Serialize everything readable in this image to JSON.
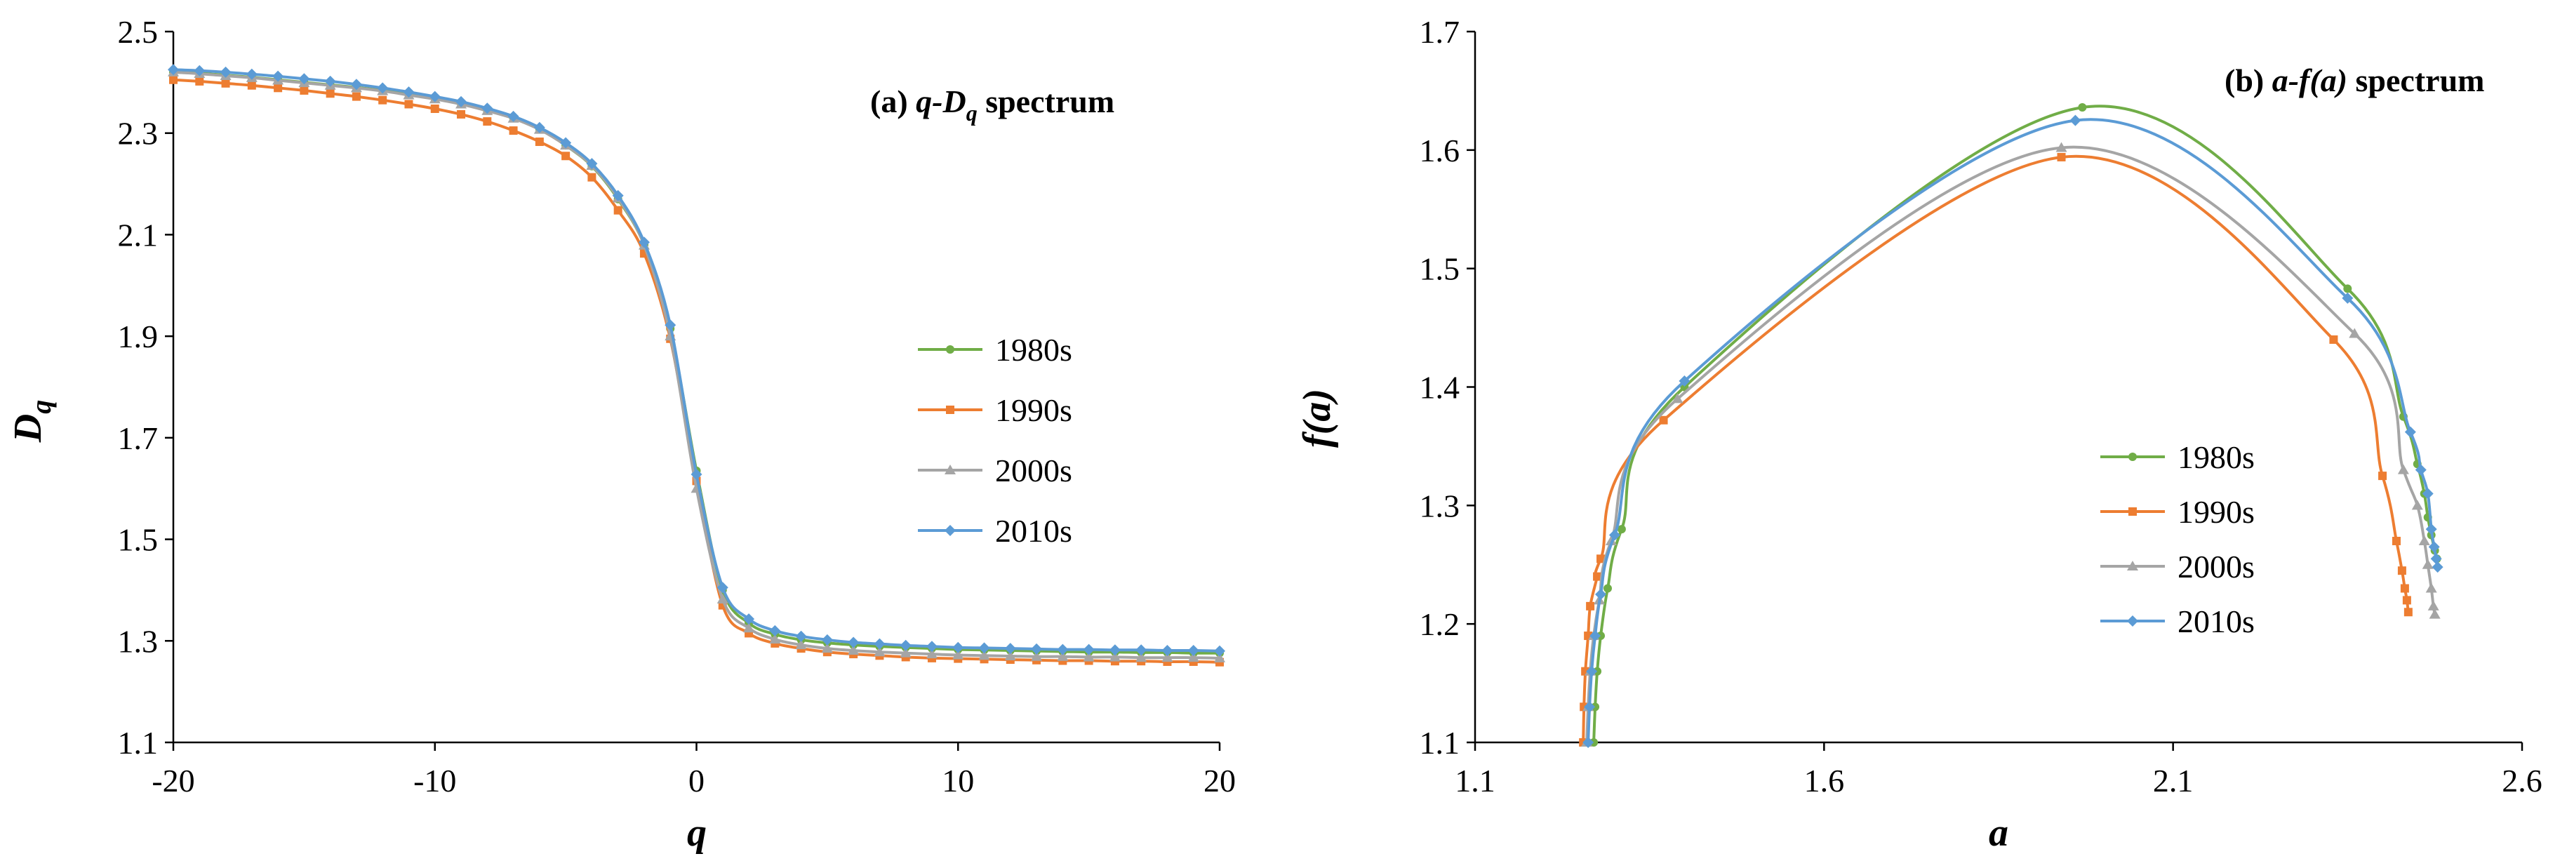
{
  "chart_data": [
    {
      "type": "line",
      "title_prefix": "(a) ",
      "title_var": "q-D",
      "title_sub": "q",
      "title_suffix": " spectrum",
      "xlabel": "q",
      "ylabel_main": "D",
      "ylabel_sub": "q",
      "xlim": [
        -20,
        20
      ],
      "ylim": [
        1.1,
        2.5
      ],
      "xticks": [
        "-20",
        "-10",
        "0",
        "10",
        "20"
      ],
      "yticks": [
        "1.1",
        "1.3",
        "1.5",
        "1.7",
        "1.9",
        "2.1",
        "2.3",
        "2.5"
      ],
      "x": [
        -20,
        -19,
        -18,
        -17,
        -16,
        -15,
        -14,
        -13,
        -12,
        -11,
        -10,
        -9,
        -8,
        -7,
        -6,
        -5,
        -4,
        -3,
        -2,
        -1,
        0,
        1,
        2,
        3,
        4,
        5,
        6,
        7,
        8,
        9,
        10,
        11,
        12,
        13,
        14,
        15,
        16,
        17,
        18,
        19,
        20
      ],
      "series": [
        {
          "name": "1980s",
          "color": "#70AD47",
          "marker": "circle",
          "values": [
            2.42,
            2.418,
            2.414,
            2.41,
            2.405,
            2.4,
            2.395,
            2.39,
            2.384,
            2.376,
            2.368,
            2.358,
            2.345,
            2.33,
            2.308,
            2.276,
            2.235,
            2.17,
            2.08,
            1.915,
            1.635,
            1.4,
            1.335,
            1.313,
            1.302,
            1.296,
            1.292,
            1.289,
            1.287,
            1.285,
            1.283,
            1.282,
            1.281,
            1.28,
            1.279,
            1.278,
            1.278,
            1.277,
            1.277,
            1.276,
            1.276
          ]
        },
        {
          "name": "1990s",
          "color": "#ED7D31",
          "marker": "square",
          "values": [
            2.405,
            2.402,
            2.398,
            2.394,
            2.389,
            2.384,
            2.378,
            2.372,
            2.365,
            2.357,
            2.348,
            2.337,
            2.323,
            2.305,
            2.283,
            2.255,
            2.213,
            2.148,
            2.063,
            1.895,
            1.615,
            1.37,
            1.315,
            1.295,
            1.285,
            1.278,
            1.274,
            1.271,
            1.268,
            1.266,
            1.265,
            1.264,
            1.263,
            1.262,
            1.261,
            1.261,
            1.26,
            1.26,
            1.259,
            1.259,
            1.258
          ]
        },
        {
          "name": "2000s",
          "color": "#A5A5A5",
          "marker": "triangle",
          "values": [
            2.42,
            2.417,
            2.413,
            2.409,
            2.404,
            2.399,
            2.394,
            2.389,
            2.383,
            2.375,
            2.367,
            2.357,
            2.344,
            2.329,
            2.307,
            2.276,
            2.236,
            2.172,
            2.079,
            1.9,
            1.6,
            1.382,
            1.325,
            1.303,
            1.292,
            1.285,
            1.281,
            1.278,
            1.276,
            1.274,
            1.272,
            1.271,
            1.27,
            1.269,
            1.269,
            1.268,
            1.268,
            1.267,
            1.267,
            1.267,
            1.266
          ]
        },
        {
          "name": "2010s",
          "color": "#5B9BD5",
          "marker": "diamond",
          "values": [
            2.425,
            2.423,
            2.42,
            2.416,
            2.412,
            2.407,
            2.402,
            2.396,
            2.389,
            2.381,
            2.372,
            2.362,
            2.349,
            2.333,
            2.311,
            2.281,
            2.24,
            2.177,
            2.085,
            1.922,
            1.628,
            1.405,
            1.343,
            1.32,
            1.309,
            1.302,
            1.297,
            1.294,
            1.291,
            1.289,
            1.287,
            1.286,
            1.285,
            1.284,
            1.283,
            1.283,
            1.282,
            1.282,
            1.281,
            1.281,
            1.28
          ]
        }
      ]
    },
    {
      "type": "line",
      "title_prefix": "(b) ",
      "title_var": "a-f(a)",
      "title_suffix": " spectrum",
      "xlabel": "a",
      "ylabel": "f(a)",
      "xlim": [
        1.1,
        2.6
      ],
      "ylim": [
        1.1,
        1.7
      ],
      "xticks": [
        "1.1",
        "1.6",
        "2.1",
        "2.6"
      ],
      "yticks": [
        "1.1",
        "1.2",
        "1.3",
        "1.4",
        "1.5",
        "1.6",
        "1.7"
      ],
      "series": [
        {
          "name": "1980s",
          "color": "#70AD47",
          "marker": "circle",
          "x": [
            1.27,
            1.272,
            1.275,
            1.28,
            1.29,
            1.31,
            1.4,
            1.97,
            2.35,
            2.43,
            2.45,
            2.46,
            2.465,
            2.47,
            2.475,
            2.478
          ],
          "y": [
            1.1,
            1.13,
            1.16,
            1.19,
            1.23,
            1.28,
            1.4,
            1.636,
            1.483,
            1.375,
            1.335,
            1.31,
            1.29,
            1.275,
            1.262,
            1.255
          ]
        },
        {
          "name": "1990s",
          "color": "#ED7D31",
          "marker": "square",
          "x": [
            1.255,
            1.256,
            1.258,
            1.262,
            1.265,
            1.275,
            1.28,
            1.37,
            1.94,
            2.33,
            2.4,
            2.42,
            2.428,
            2.432,
            2.435,
            2.437
          ],
          "y": [
            1.1,
            1.13,
            1.16,
            1.19,
            1.215,
            1.24,
            1.255,
            1.372,
            1.594,
            1.44,
            1.325,
            1.27,
            1.245,
            1.23,
            1.22,
            1.21
          ]
        },
        {
          "name": "2000s",
          "color": "#A5A5A5",
          "marker": "triangle",
          "x": [
            1.26,
            1.262,
            1.265,
            1.27,
            1.278,
            1.295,
            1.39,
            1.94,
            2.36,
            2.43,
            2.45,
            2.46,
            2.465,
            2.47,
            2.473,
            2.475
          ],
          "y": [
            1.1,
            1.13,
            1.16,
            1.19,
            1.22,
            1.27,
            1.39,
            1.602,
            1.445,
            1.33,
            1.3,
            1.27,
            1.25,
            1.23,
            1.215,
            1.208
          ]
        },
        {
          "name": "2010s",
          "color": "#5B9BD5",
          "marker": "diamond",
          "x": [
            1.262,
            1.264,
            1.267,
            1.272,
            1.28,
            1.3,
            1.4,
            1.96,
            2.35,
            2.44,
            2.455,
            2.465,
            2.47,
            2.474,
            2.477,
            2.479
          ],
          "y": [
            1.1,
            1.13,
            1.16,
            1.19,
            1.225,
            1.275,
            1.405,
            1.625,
            1.475,
            1.362,
            1.33,
            1.31,
            1.28,
            1.265,
            1.255,
            1.248
          ]
        }
      ]
    }
  ]
}
